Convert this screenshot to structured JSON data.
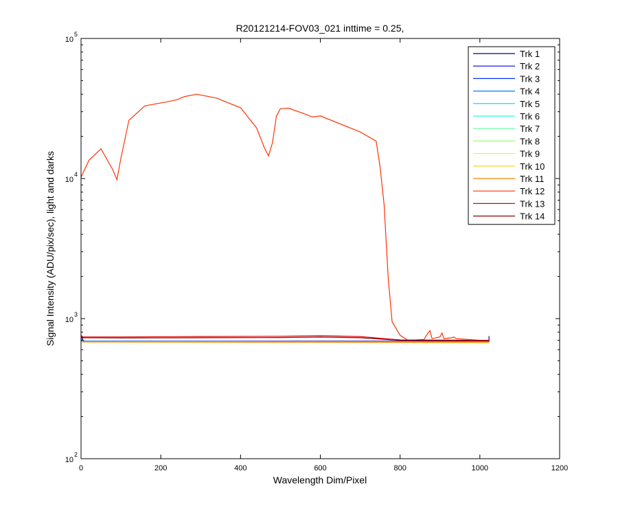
{
  "chart_data": {
    "type": "line",
    "title": "R20121214-FOV03_021 inttime = 0.25,",
    "xlabel": "Wavelength Dim/Pixel",
    "ylabel": "Signal Intensity (ADU/pix/sec), light and darks",
    "xlim": [
      0,
      1200
    ],
    "ylim": [
      100,
      100000
    ],
    "yscale": "log",
    "grid": false,
    "legend_position": "top-right",
    "x_ticks": [
      {
        "value": 0,
        "label": "0"
      },
      {
        "value": 200,
        "label": "200"
      },
      {
        "value": 400,
        "label": "400"
      },
      {
        "value": 600,
        "label": "600"
      },
      {
        "value": 800,
        "label": "800"
      },
      {
        "value": 1000,
        "label": "1000"
      },
      {
        "value": 1200,
        "label": "1200"
      }
    ],
    "y_ticks": [
      {
        "value": 100,
        "base": "10",
        "exp": "2"
      },
      {
        "value": 1000,
        "base": "10",
        "exp": "3"
      },
      {
        "value": 10000,
        "base": "10",
        "exp": "4"
      },
      {
        "value": 100000,
        "base": "10",
        "exp": "5"
      }
    ],
    "series": [
      {
        "name": "Trk 1",
        "color": "#00008f",
        "x": [
          0,
          2,
          5,
          10,
          1023,
          1023
        ],
        "y": [
          720,
          740,
          700,
          690,
          690,
          750
        ]
      },
      {
        "name": "Trk 2",
        "color": "#0000df",
        "x": [
          0,
          5,
          1023
        ],
        "y": [
          710,
          690,
          685
        ]
      },
      {
        "name": "Trk 3",
        "color": "#0030ff",
        "x": [
          0,
          5,
          1023
        ],
        "y": [
          705,
          690,
          683
        ]
      },
      {
        "name": "Trk 4",
        "color": "#0080ff",
        "x": [
          0,
          5,
          1023
        ],
        "y": [
          700,
          688,
          682
        ]
      },
      {
        "name": "Trk 5",
        "color": "#00cfff",
        "x": [
          0,
          5,
          1023
        ],
        "y": [
          700,
          687,
          681
        ]
      },
      {
        "name": "Trk 6",
        "color": "#20ffdf",
        "x": [
          0,
          5,
          1023
        ],
        "y": [
          698,
          686,
          680
        ]
      },
      {
        "name": "Trk 7",
        "color": "#60ff9f",
        "x": [
          0,
          5,
          1023
        ],
        "y": [
          697,
          685,
          679
        ]
      },
      {
        "name": "Trk 8",
        "color": "#9fff60",
        "x": [
          0,
          5,
          1023
        ],
        "y": [
          696,
          684,
          678
        ]
      },
      {
        "name": "Trk 9",
        "color": "#dfff20",
        "x": [
          0,
          5,
          1023
        ],
        "y": [
          695,
          683,
          677
        ]
      },
      {
        "name": "Trk 10",
        "color": "#ffcf00",
        "x": [
          0,
          5,
          1023
        ],
        "y": [
          694,
          682,
          676
        ]
      },
      {
        "name": "Trk 11",
        "color": "#ff8000",
        "x": [
          0,
          5,
          1023
        ],
        "y": [
          693,
          681,
          675
        ]
      },
      {
        "name": "Trk 12",
        "color": "#ff3000",
        "x": [
          0,
          20,
          50,
          80,
          90,
          100,
          120,
          160,
          220,
          240,
          260,
          290,
          340,
          400,
          440,
          460,
          470,
          480,
          490,
          500,
          520,
          560,
          580,
          600,
          700,
          740,
          750,
          760,
          770,
          780,
          800,
          820,
          860,
          870,
          875,
          880,
          900,
          905,
          910,
          930,
          935,
          940,
          1000,
          1023
        ],
        "y": [
          10200,
          13500,
          16300,
          11500,
          9800,
          14000,
          26000,
          33000,
          35500,
          36500,
          38500,
          40000,
          37500,
          32000,
          23000,
          16500,
          14500,
          18000,
          28000,
          31500,
          31800,
          29000,
          27500,
          28000,
          21500,
          18500,
          12000,
          6500,
          2000,
          950,
          760,
          700,
          710,
          790,
          820,
          720,
          740,
          790,
          720,
          730,
          740,
          720,
          700,
          700
        ]
      },
      {
        "name": "Trk 13",
        "color": "#df0000",
        "x": [
          0,
          5,
          100,
          300,
          500,
          600,
          700,
          760,
          800,
          1023
        ],
        "y": [
          760,
          740,
          740,
          745,
          748,
          755,
          745,
          720,
          705,
          700
        ]
      },
      {
        "name": "Trk 14",
        "color": "#8f0000",
        "x": [
          0,
          5,
          100,
          300,
          500,
          600,
          700,
          760,
          800,
          1023
        ],
        "y": [
          740,
          730,
          728,
          730,
          732,
          738,
          730,
          712,
          700,
          695
        ]
      }
    ]
  }
}
